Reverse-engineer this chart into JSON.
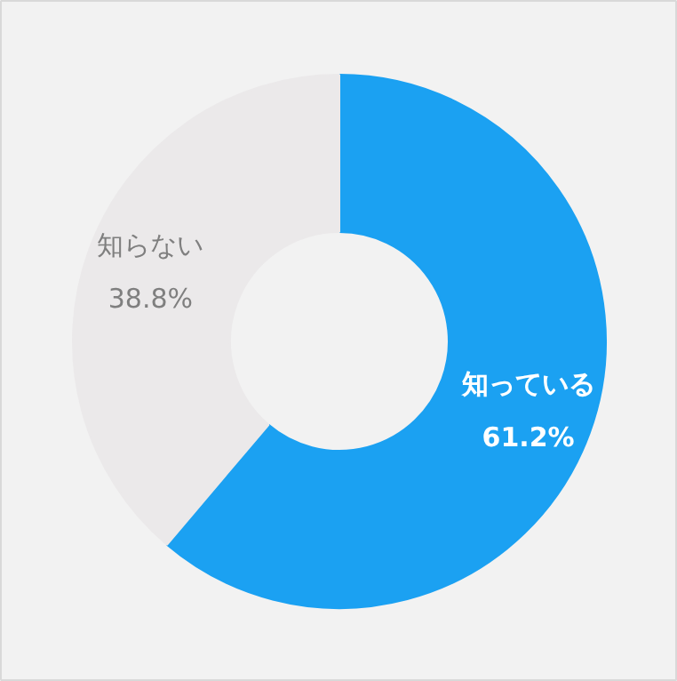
{
  "chart_data": {
    "type": "donut",
    "categories": [
      "知っている",
      "知らない"
    ],
    "values": [
      61.2,
      38.8
    ],
    "colors": [
      "#1ba1f2",
      "#ebe9ea"
    ],
    "value_labels": [
      "61.2%",
      "38.8%"
    ]
  }
}
